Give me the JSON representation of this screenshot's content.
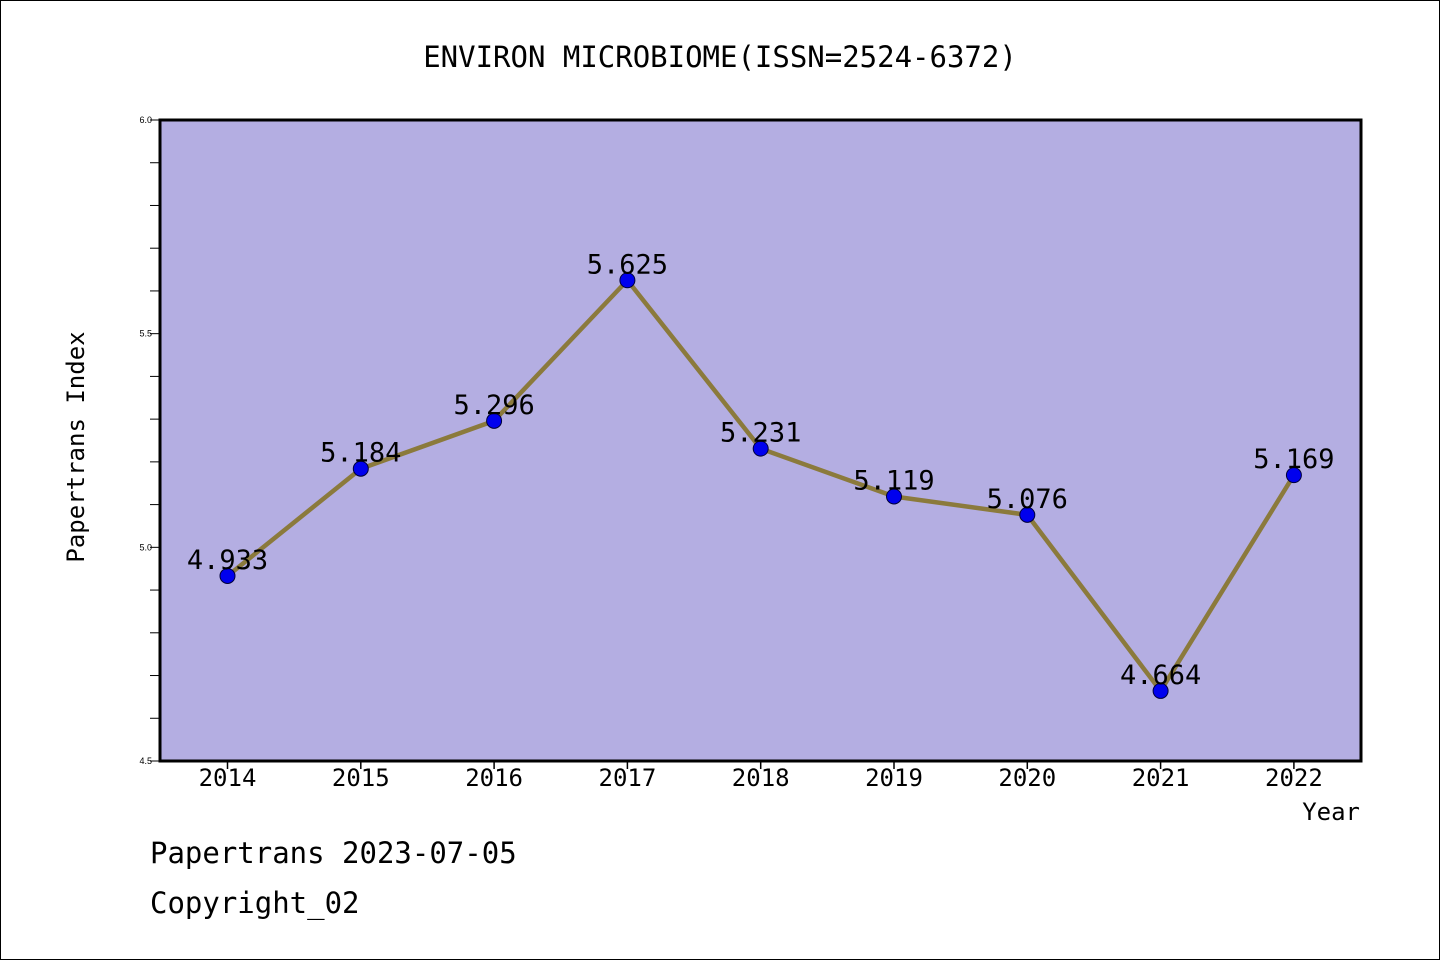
{
  "footer": {
    "date_line": "Papertrans 2023-07-05",
    "copyright": "Copyright_02"
  },
  "chart_data": {
    "type": "line",
    "title": "ENVIRON MICROBIOME(ISSN=2524-6372)",
    "xlabel": "Year",
    "ylabel": "Papertrans Index",
    "categories": [
      "2014",
      "2015",
      "2016",
      "2017",
      "2018",
      "2019",
      "2020",
      "2021",
      "2022"
    ],
    "values": [
      4.933,
      5.184,
      5.296,
      5.625,
      5.231,
      5.119,
      5.076,
      4.664,
      5.169
    ],
    "value_labels": [
      "4.933",
      "5.184",
      "5.296",
      "5.625",
      "5.231",
      "5.119",
      "5.076",
      "4.664",
      "5.169"
    ],
    "ylim": [
      4.5,
      6.0
    ],
    "yticks": [
      "4.5",
      "5.0",
      "5.5",
      "6.0"
    ],
    "grid": false,
    "colors": {
      "plot_background": "#b4aee2",
      "line": "#8b7a3c",
      "marker": "#0000ee"
    }
  }
}
